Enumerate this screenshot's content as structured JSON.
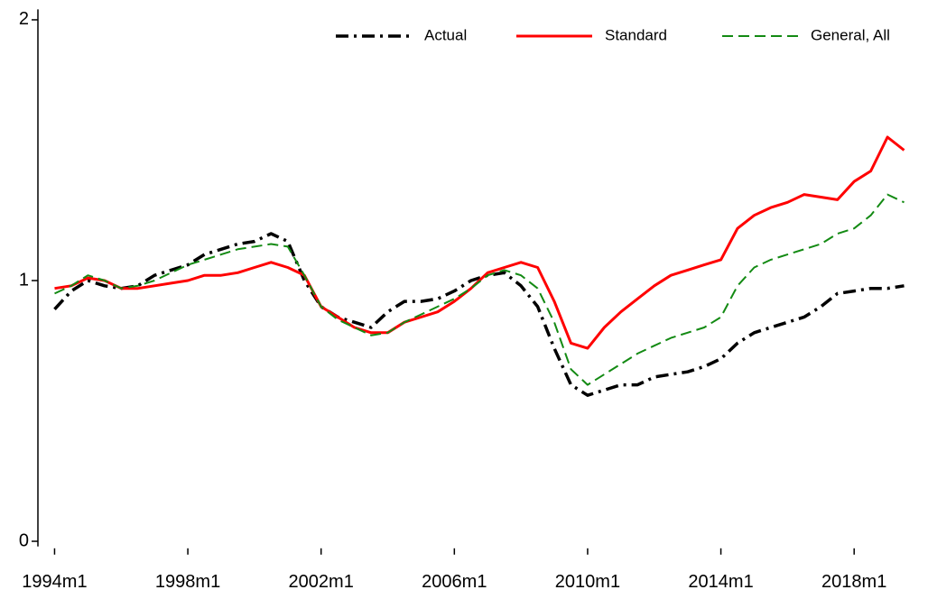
{
  "chart_data": {
    "type": "line",
    "x": [
      1994.0,
      1994.5,
      1995.0,
      1995.5,
      1996.0,
      1996.5,
      1997.0,
      1997.5,
      1998.0,
      1998.5,
      1999.0,
      1999.5,
      2000.0,
      2000.5,
      2001.0,
      2001.5,
      2002.0,
      2002.5,
      2003.0,
      2003.5,
      2004.0,
      2004.5,
      2005.0,
      2005.5,
      2006.0,
      2006.5,
      2007.0,
      2007.5,
      2008.0,
      2008.5,
      2009.0,
      2009.5,
      2010.0,
      2010.5,
      2011.0,
      2011.5,
      2012.0,
      2012.5,
      2013.0,
      2013.5,
      2014.0,
      2014.5,
      2015.0,
      2015.5,
      2016.0,
      2016.5,
      2017.0,
      2017.5,
      2018.0,
      2018.5,
      2019.0,
      2019.5
    ],
    "series": [
      {
        "name": "Actual",
        "color": "#000000",
        "dash": "14 6 3 6",
        "width": 3.5,
        "values": [
          0.89,
          0.96,
          1.0,
          0.98,
          0.97,
          0.98,
          1.02,
          1.04,
          1.06,
          1.1,
          1.12,
          1.14,
          1.15,
          1.18,
          1.15,
          1.0,
          0.9,
          0.86,
          0.84,
          0.82,
          0.88,
          0.92,
          0.92,
          0.93,
          0.96,
          1.0,
          1.02,
          1.03,
          0.98,
          0.9,
          0.74,
          0.6,
          0.56,
          0.58,
          0.6,
          0.6,
          0.63,
          0.64,
          0.65,
          0.67,
          0.7,
          0.76,
          0.8,
          0.82,
          0.84,
          0.86,
          0.9,
          0.95,
          0.96,
          0.97,
          0.97,
          0.98
        ]
      },
      {
        "name": "Standard",
        "color": "#ff0000",
        "dash": "none",
        "width": 3,
        "values": [
          0.97,
          0.98,
          1.01,
          1.0,
          0.97,
          0.97,
          0.98,
          0.99,
          1.0,
          1.02,
          1.02,
          1.03,
          1.05,
          1.07,
          1.05,
          1.02,
          0.9,
          0.86,
          0.82,
          0.8,
          0.8,
          0.84,
          0.86,
          0.88,
          0.92,
          0.97,
          1.03,
          1.05,
          1.07,
          1.05,
          0.92,
          0.76,
          0.74,
          0.82,
          0.88,
          0.93,
          0.98,
          1.02,
          1.04,
          1.06,
          1.08,
          1.2,
          1.25,
          1.28,
          1.3,
          1.33,
          1.32,
          1.31,
          1.38,
          1.42,
          1.55,
          1.5
        ]
      },
      {
        "name": "General, All",
        "color": "#138a13",
        "dash": "12 6",
        "width": 2,
        "values": [
          0.95,
          0.98,
          1.02,
          1.0,
          0.97,
          0.98,
          1.0,
          1.03,
          1.06,
          1.08,
          1.1,
          1.12,
          1.13,
          1.14,
          1.13,
          1.02,
          0.9,
          0.85,
          0.82,
          0.79,
          0.8,
          0.84,
          0.87,
          0.9,
          0.93,
          0.97,
          1.02,
          1.04,
          1.02,
          0.97,
          0.84,
          0.66,
          0.6,
          0.64,
          0.68,
          0.72,
          0.75,
          0.78,
          0.8,
          0.82,
          0.86,
          0.98,
          1.05,
          1.08,
          1.1,
          1.12,
          1.14,
          1.18,
          1.2,
          1.25,
          1.33,
          1.3
        ]
      }
    ],
    "xlim": [
      1993.5,
      2020.0
    ],
    "xticks": [
      {
        "value": 1994,
        "label": "1994m1"
      },
      {
        "value": 1998,
        "label": "1998m1"
      },
      {
        "value": 2002,
        "label": "2002m1"
      },
      {
        "value": 2006,
        "label": "2006m1"
      },
      {
        "value": 2010,
        "label": "2010m1"
      },
      {
        "value": 2014,
        "label": "2014m1"
      },
      {
        "value": 2018,
        "label": "2018m1"
      }
    ],
    "ylim": [
      -0.02,
      2.04
    ],
    "yticks": [
      0,
      1,
      2
    ],
    "grid": false,
    "legend": "top"
  }
}
